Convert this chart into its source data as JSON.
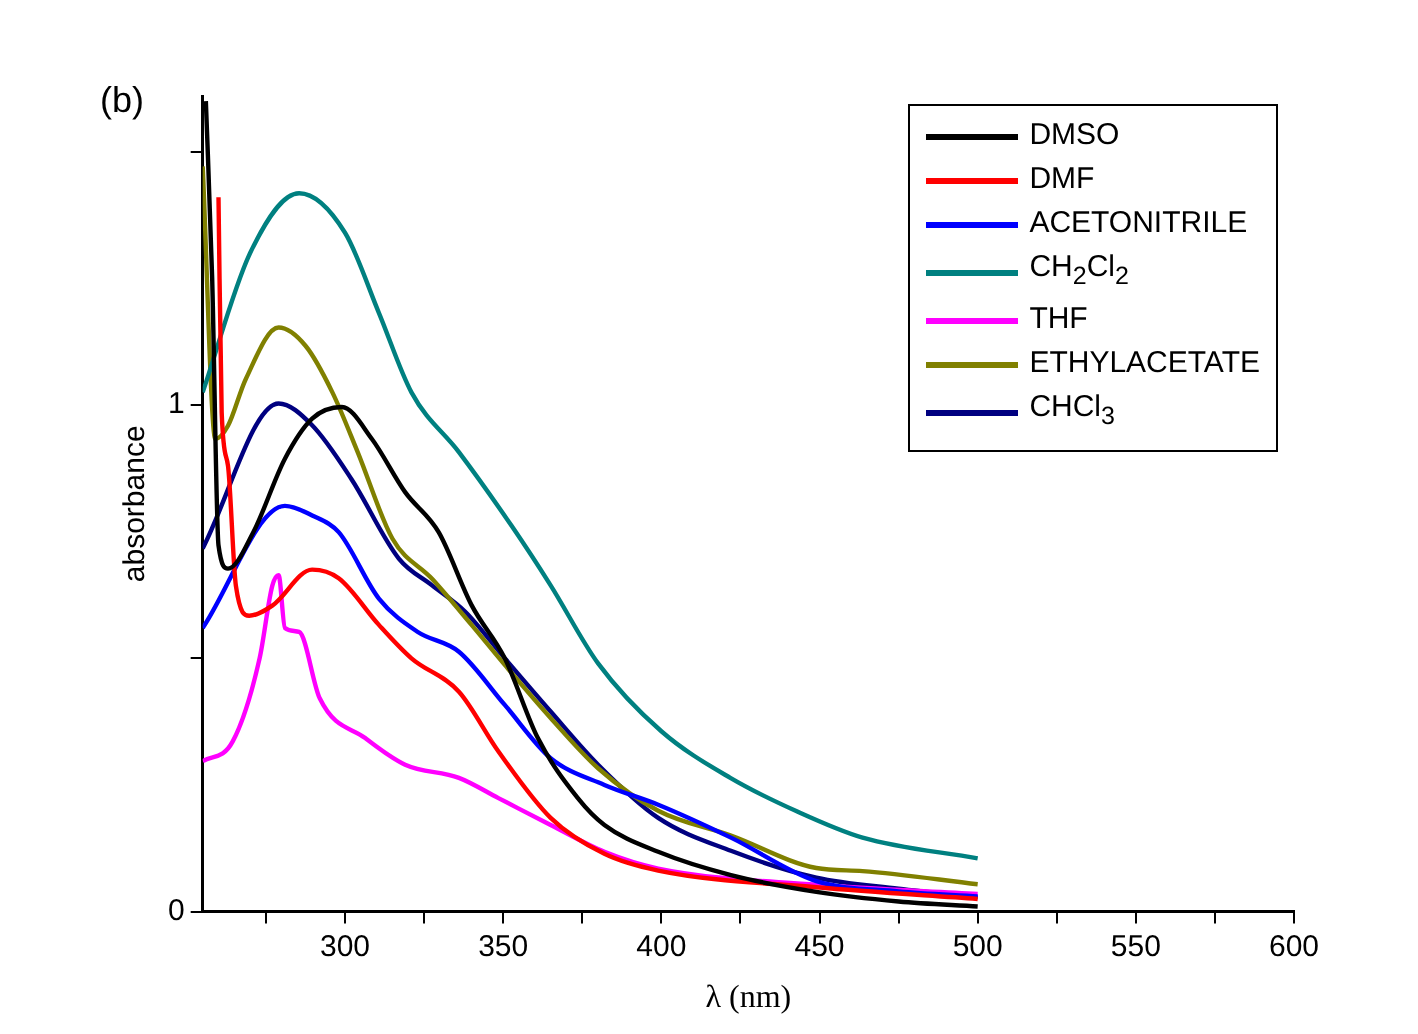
{
  "chart_data": {
    "type": "line",
    "xlabel": "λ (nm)",
    "ylabel": "absorbance",
    "annotations": [
      "(b)"
    ],
    "xlim": [
      255,
      600
    ],
    "xticks": [
      {
        "value": 275,
        "label": null
      },
      300,
      {
        "value": 325,
        "label": null
      },
      350,
      {
        "value": 375,
        "label": null
      },
      400,
      {
        "value": 425,
        "label": null
      },
      450,
      {
        "value": 475,
        "label": null
      },
      500,
      {
        "value": 525,
        "label": null
      },
      550,
      {
        "value": 575,
        "label": null
      },
      600
    ],
    "ylim": [
      0,
      1.61
    ],
    "yticks": [
      0,
      {
        "value": 0.5,
        "label": null
      },
      1,
      {
        "value": 1.5,
        "label": null
      }
    ],
    "grid": false,
    "legend": "top right",
    "marker": "none",
    "line_style": "solid",
    "series": [
      {
        "name": "DMSO",
        "color": "#000000",
        "x": [
          256,
          258,
          260,
          263,
          271,
          281,
          289.6,
          299,
          308.5,
          319,
          329.6,
          340,
          350.5,
          361,
          373.6,
          382,
          399,
          422,
          449,
          475,
          500
        ],
        "values": [
          1.6,
          1.25,
          0.723,
          0.677,
          0.749,
          0.894,
          0.973,
          0.996,
          0.933,
          0.828,
          0.749,
          0.605,
          0.5,
          0.342,
          0.224,
          0.171,
          0.118,
          0.072,
          0.039,
          0.02,
          0.01
        ]
      },
      {
        "name": "DMF",
        "color": "#ff0000",
        "x": [
          260,
          261,
          263,
          265.5,
          269.7,
          277,
          289.6,
          298,
          310.7,
          321,
          336,
          348.5,
          365,
          382,
          399,
          449,
          500
        ],
        "values": [
          1.41,
          0.986,
          0.88,
          0.643,
          0.584,
          0.604,
          0.675,
          0.658,
          0.566,
          0.5,
          0.434,
          0.316,
          0.185,
          0.114,
          0.081,
          0.048,
          0.025
        ]
      },
      {
        "name": "ACETONITRILE",
        "color": "#0000ff",
        "x": [
          255,
          281,
          289.6,
          298,
          310.7,
          323,
          336,
          350.5,
          365,
          382,
          399,
          422,
          449,
          475,
          500
        ],
        "values": [
          0.56,
          0.801,
          0.782,
          0.749,
          0.618,
          0.552,
          0.513,
          0.408,
          0.303,
          0.25,
          0.211,
          0.146,
          0.06,
          0.04,
          0.03
        ]
      },
      {
        "name": "CH$_{2}$Cl$_{2}$",
        "color": "#008080",
        "x": [
          255,
          270,
          285.5,
          300,
          310.7,
          321,
          336,
          352.6,
          365,
          380,
          400,
          421.8,
          442.8,
          463.6,
          500
        ],
        "values": [
          1.025,
          1.3,
          1.418,
          1.34,
          1.182,
          1.025,
          0.907,
          0.762,
          0.644,
          0.49,
          0.356,
          0.264,
          0.198,
          0.146,
          0.105
        ]
      },
      {
        "name": "THF",
        "color": "#ff00ff",
        "x": [
          255,
          264.5,
          273,
          277,
          279,
          281,
          285.5,
          292,
          306.5,
          319,
          336,
          348.5,
          365,
          382,
          399,
          449,
          500
        ],
        "values": [
          0.297,
          0.336,
          0.5,
          0.643,
          0.664,
          0.56,
          0.552,
          0.421,
          0.342,
          0.29,
          0.264,
          0.224,
          0.171,
          0.118,
          0.085,
          0.053,
          0.035
        ]
      },
      {
        "name": "ETHYLACETATE",
        "color": "#808000",
        "x": [
          255,
          259,
          263,
          268.6,
          279,
          287.5,
          296,
          304,
          315,
          327.5,
          340,
          350.5,
          365,
          380,
          399,
          422,
          449,
          463.6,
          500
        ],
        "values": [
          1.471,
          0.933,
          0.959,
          1.051,
          1.153,
          1.117,
          1.025,
          0.907,
          0.736,
          0.657,
          0.566,
          0.487,
          0.382,
          0.283,
          0.199,
          0.15,
          0.086,
          0.08,
          0.054
        ]
      },
      {
        "name": "CHCl$_{3}$",
        "color": "#000080",
        "x": [
          255,
          279,
          289.6,
          302,
          317,
          327.5,
          338,
          350.5,
          365,
          380,
          399,
          422,
          449,
          475,
          500
        ],
        "values": [
          0.717,
          1.003,
          0.96,
          0.854,
          0.697,
          0.644,
          0.592,
          0.5,
          0.395,
          0.29,
          0.185,
          0.12,
          0.067,
          0.045,
          0.028
        ]
      }
    ]
  }
}
